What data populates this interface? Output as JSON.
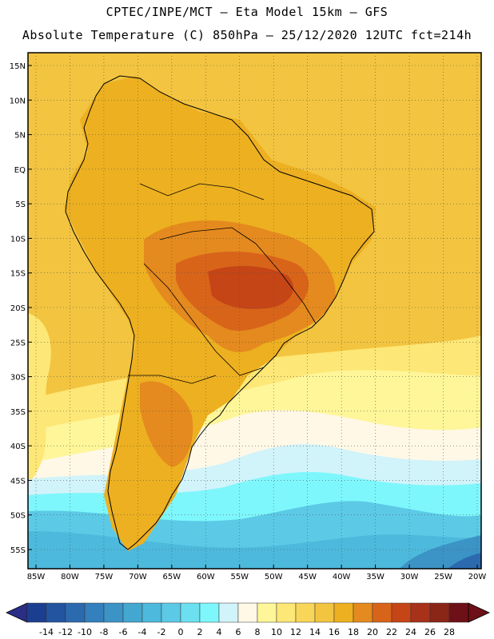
{
  "title_line1": "CPTEC/INPE/MCT –  Eta Model 15km – GFS",
  "title_line2": "Absolute Temperature (C) 850hPa – 25/12/2020 12UTC fct=214h",
  "lat_labels": [
    "15N",
    "10N",
    "5N",
    "EQ",
    "5S",
    "10S",
    "15S",
    "20S",
    "25S",
    "30S",
    "35S",
    "40S",
    "45S",
    "50S",
    "55S"
  ],
  "lon_labels": [
    "85W",
    "80W",
    "75W",
    "70W",
    "65W",
    "60W",
    "55W",
    "50W",
    "45W",
    "40W",
    "35W",
    "30W",
    "25W",
    "20W"
  ],
  "colorbar": {
    "ticks": [
      "-14",
      "-12",
      "-10",
      "-8",
      "-6",
      "-4",
      "-2",
      "0",
      "2",
      "4",
      "6",
      "8",
      "10",
      "12",
      "14",
      "16",
      "18",
      "20",
      "22",
      "24",
      "26",
      "28"
    ],
    "colors": [
      "#1c3e8f",
      "#22549f",
      "#2c6aaf",
      "#347fbd",
      "#3b93c6",
      "#43a7d0",
      "#4db9dc",
      "#5ccae6",
      "#6de0f0",
      "#7ef7fc",
      "#d1f3fa",
      "#fff8e6",
      "#fef699",
      "#fde776",
      "#f8d659",
      "#f2c440",
      "#edb020",
      "#e48a1e",
      "#d8641a",
      "#c54516",
      "#a8311a",
      "#8a2618",
      "#6e1017"
    ]
  },
  "legend": {
    "cold_color": "#2a2e86",
    "warm_color": "#6e1017"
  },
  "map_colors": {
    "ocean_warm": "#f2c440",
    "land_warm": "#edb020",
    "land_hot": "#e48a1e",
    "core_hot": "#d8641a",
    "core_hottest": "#c54516",
    "mild": "#fde776",
    "pale": "#fef699",
    "cream": "#fff8e6",
    "very_pale_cyan": "#d1f3fa",
    "cyan": "#7ef7fc",
    "sky": "#6de0f0",
    "light_blue": "#5ccae6",
    "mid_blue": "#4db9dc",
    "blue": "#43a7d0",
    "deep_blue": "#3b93c6",
    "navy": "#2c6aaf"
  }
}
